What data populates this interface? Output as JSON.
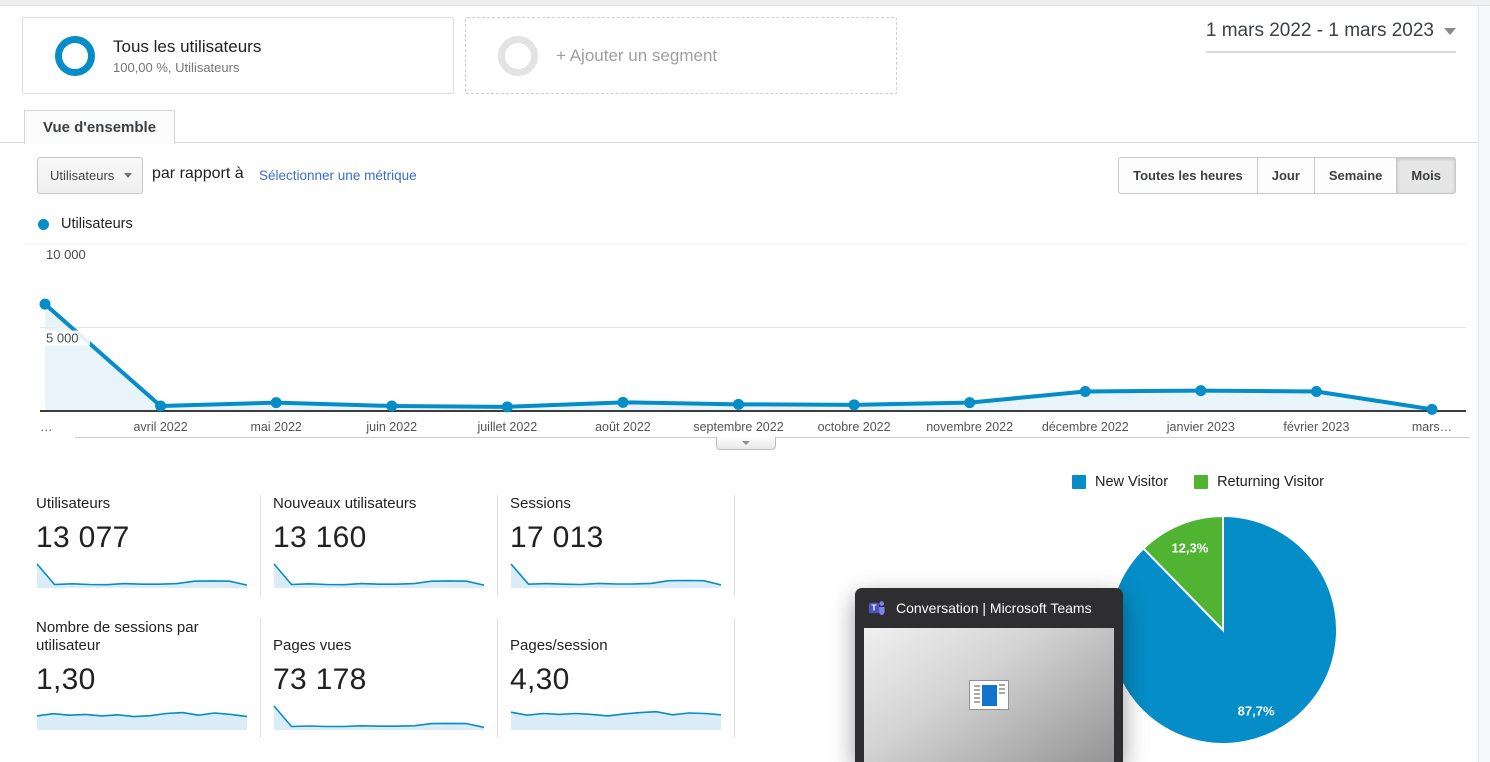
{
  "colors": {
    "accent_blue": "#058dc7",
    "pie_green": "#50b432",
    "area_fill": "#e3f1f9",
    "spark_fill": "#daecf7"
  },
  "header": {
    "segment_all_users": {
      "title": "Tous les utilisateurs",
      "subtitle": "100,00 %, Utilisateurs"
    },
    "add_segment_label": "+ Ajouter un segment",
    "date_range": "1 mars 2022 - 1 mars 2023"
  },
  "tabs": {
    "overview": "Vue d'ensemble"
  },
  "controls": {
    "metric_select": "Utilisateurs",
    "vs_label": "par rapport à",
    "select_metric_link": "Sélectionner une métrique",
    "granularity": [
      "Toutes les heures",
      "Jour",
      "Semaine",
      "Mois"
    ],
    "granularity_selected": "Mois"
  },
  "chart_data": [
    {
      "type": "line",
      "title": "Utilisateurs",
      "legend": [
        "Utilisateurs"
      ],
      "x": [
        "…",
        "avril 2022",
        "mai 2022",
        "juin 2022",
        "juillet 2022",
        "août 2022",
        "septembre 2022",
        "octobre 2022",
        "novembre 2022",
        "décembre 2022",
        "janvier 2023",
        "février 2023",
        "mars…"
      ],
      "values": [
        6400,
        300,
        500,
        300,
        250,
        520,
        400,
        370,
        500,
        1170,
        1220,
        1170,
        100
      ],
      "ylim": [
        0,
        10000
      ],
      "yticks": [
        {
          "label": "10 000",
          "value": 10000
        },
        {
          "label": "5 000",
          "value": 5000
        }
      ],
      "grid": true,
      "legend_position": "top-left"
    },
    {
      "type": "pie",
      "legend": [
        "New Visitor",
        "Returning Visitor"
      ],
      "slices": [
        {
          "label": "New Visitor",
          "value": 87.7,
          "display": "87,7%",
          "color": "#058dc7"
        },
        {
          "label": "Returning Visitor",
          "value": 12.3,
          "display": "12,3%",
          "color": "#50b432"
        }
      ],
      "legend_position": "top-right"
    }
  ],
  "metrics": [
    {
      "label": "Utilisateurs",
      "value": "13 077",
      "spark": [
        1.0,
        0.07,
        0.1,
        0.07,
        0.06,
        0.11,
        0.08,
        0.08,
        0.11,
        0.22,
        0.23,
        0.22,
        0.04
      ]
    },
    {
      "label": "Nouveaux utilisateurs",
      "value": "13 160",
      "spark": [
        1.0,
        0.07,
        0.1,
        0.07,
        0.06,
        0.11,
        0.08,
        0.08,
        0.11,
        0.22,
        0.23,
        0.22,
        0.04
      ]
    },
    {
      "label": "Sessions",
      "value": "17 013",
      "spark": [
        1.0,
        0.08,
        0.11,
        0.08,
        0.07,
        0.12,
        0.09,
        0.09,
        0.12,
        0.24,
        0.25,
        0.24,
        0.05
      ]
    },
    {
      "label": "Nombre de sessions par utilisateur",
      "value": "1,30",
      "spark": [
        0.55,
        0.65,
        0.58,
        0.62,
        0.55,
        0.6,
        0.52,
        0.56,
        0.66,
        0.7,
        0.58,
        0.68,
        0.62,
        0.52
      ]
    },
    {
      "label": "Pages vues",
      "value": "73 178",
      "spark": [
        1.0,
        0.07,
        0.09,
        0.07,
        0.07,
        0.1,
        0.08,
        0.08,
        0.1,
        0.2,
        0.21,
        0.2,
        0.03
      ]
    },
    {
      "label": "Pages/session",
      "value": "4,30",
      "spark": [
        0.72,
        0.58,
        0.66,
        0.62,
        0.66,
        0.62,
        0.55,
        0.64,
        0.7,
        0.74,
        0.6,
        0.68,
        0.66,
        0.6
      ]
    }
  ],
  "teams_popup": {
    "title": "Conversation | Microsoft Teams"
  }
}
